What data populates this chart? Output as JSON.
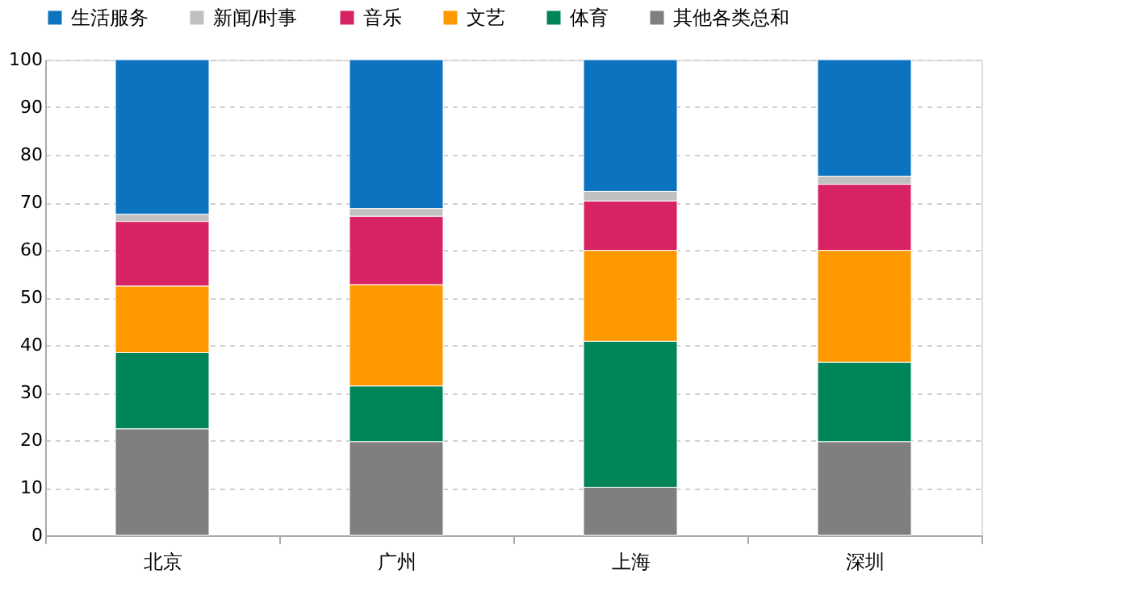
{
  "chart_data": {
    "type": "bar",
    "stacked": true,
    "categories": [
      "北京",
      "广州",
      "上海",
      "深圳"
    ],
    "series": [
      {
        "name": "其他各类总和",
        "color": "#7f7f7f",
        "values": [
          22.4,
          19.7,
          10.1,
          19.7
        ]
      },
      {
        "name": "体育",
        "color": "#00845a",
        "values": [
          16.0,
          11.7,
          30.7,
          16.7
        ]
      },
      {
        "name": "文艺",
        "color": "#ff9900",
        "values": [
          14.0,
          21.3,
          19.1,
          23.5
        ]
      },
      {
        "name": "音乐",
        "color": "#d72363",
        "values": [
          13.6,
          14.4,
          10.4,
          13.9
        ]
      },
      {
        "name": "新闻/时事",
        "color": "#c0c0c0",
        "values": [
          1.5,
          1.6,
          2.0,
          1.7
        ]
      },
      {
        "name": "生活服务",
        "color": "#0b73bf",
        "values": [
          32.5,
          31.3,
          27.7,
          24.5
        ]
      }
    ],
    "ylim": [
      0,
      100
    ],
    "yticks": [
      0,
      10,
      20,
      30,
      40,
      50,
      60,
      70,
      80,
      90,
      100
    ],
    "grid": "y",
    "legend": "top"
  }
}
